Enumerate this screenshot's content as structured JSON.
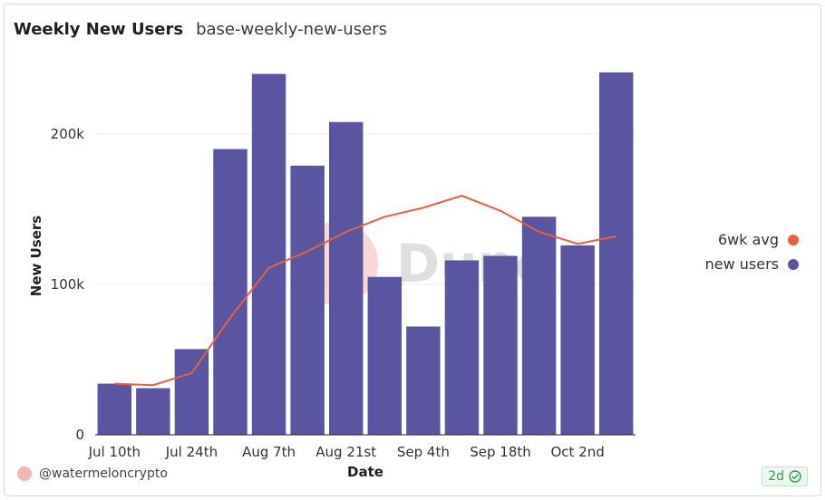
{
  "header": {
    "title": "Weekly New Users",
    "subtitle": "base-weekly-new-users"
  },
  "footer": {
    "author": "@watermeloncrypto",
    "age_badge": "2d"
  },
  "legend": [
    {
      "name": "6wk avg",
      "color": "#e8603c"
    },
    {
      "name": "new users",
      "color": "#5a55a0"
    }
  ],
  "watermark": "Dune",
  "chart_data": {
    "type": "bar",
    "xlabel": "Date",
    "ylabel": "New Users",
    "ylim": [
      0,
      250000
    ],
    "yticks": [
      0,
      100000,
      200000
    ],
    "ytick_labels": [
      "0",
      "100k",
      "200k"
    ],
    "xtick_labels": [
      "Jul 10th",
      "Jul 24th",
      "Aug 7th",
      "Aug 21st",
      "Sep 4th",
      "Sep 18th",
      "Oct 2nd"
    ],
    "categories": [
      "Jul 10",
      "Jul 17",
      "Jul 24",
      "Jul 31",
      "Aug 7",
      "Aug 14",
      "Aug 21",
      "Aug 28",
      "Sep 4",
      "Sep 11",
      "Sep 18",
      "Sep 25",
      "Oct 2",
      "Oct 9"
    ],
    "series": [
      {
        "name": "new users",
        "kind": "bar",
        "color": "#5a55a0",
        "values": [
          34000,
          31000,
          57000,
          190000,
          240000,
          179000,
          208000,
          105000,
          72000,
          116000,
          119000,
          145000,
          126000,
          241000
        ]
      },
      {
        "name": "6wk avg",
        "kind": "line",
        "color": "#e8603c",
        "values": [
          34000,
          33000,
          41000,
          78000,
          111000,
          122000,
          135000,
          145000,
          151000,
          159000,
          149000,
          135000,
          127000,
          132000
        ]
      }
    ],
    "grid": true,
    "legend_position": "right"
  }
}
